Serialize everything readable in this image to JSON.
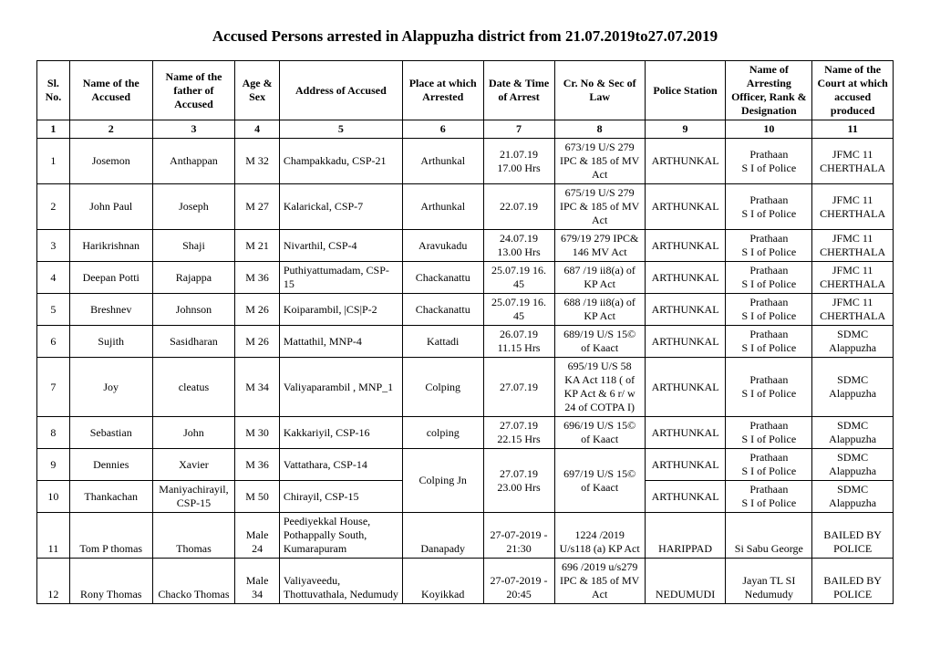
{
  "title": "Accused Persons arrested in   Alappuzha  district from   21.07.2019to27.07.2019",
  "columns": [
    "Sl. No.",
    "Name of the Accused",
    "Name of the father of Accused",
    "Age & Sex",
    "Address of Accused",
    "Place at which Arrested",
    "Date & Time of Arrest",
    "Cr. No & Sec of Law",
    "Police Station",
    "Name of Arresting Officer, Rank & Designation",
    "Name of the Court at which accused produced"
  ],
  "col_numbers": [
    "1",
    "2",
    "3",
    "4",
    "5",
    "6",
    "7",
    "8",
    "9",
    "10",
    "11"
  ],
  "rows": [
    {
      "sl": "1",
      "name": "Josemon",
      "father": "Anthappan",
      "age": "M 32",
      "addr": "Champakkadu, CSP-21",
      "place": "Arthunkal",
      "date": "21.07.19 17.00 Hrs",
      "crno": "673/19 U/S 279 IPC  & 185 of MV Act",
      "station": "ARTHUNKAL",
      "officer": "Prathaan\nS I of Police",
      "court": "JFMC 11 CHERTHALA"
    },
    {
      "sl": "2",
      "name": "John Paul",
      "father": "Joseph",
      "age": "M 27",
      "addr": "Kalarickal, CSP-7",
      "place": "Arthunkal",
      "date": "22.07.19",
      "crno": "675/19 U/S 279 IPC  & 185 of MV Act",
      "station": "ARTHUNKAL",
      "officer": "Prathaan\nS I of Police",
      "court": "JFMC 11 CHERTHALA"
    },
    {
      "sl": "3",
      "name": "Harikrishnan",
      "father": "Shaji",
      "age": "M 21",
      "addr": "Nivarthil, CSP-4",
      "place": "Aravukadu",
      "date": "24.07.19 13.00 Hrs",
      "crno": "679/19  279 IPC& 146  MV Act",
      "station": "ARTHUNKAL",
      "officer": "Prathaan\nS I of Police",
      "court": "JFMC 11 CHERTHALA"
    },
    {
      "sl": "4",
      "name": "Deepan Potti",
      "father": "Rajappa",
      "age": "M 36",
      "addr": "Puthiyattumadam, CSP-15",
      "place": "Chackanattu",
      "date": "25.07.19 16. 45",
      "crno": "687 /19  ii8(a) of KP Act",
      "station": "ARTHUNKAL",
      "officer": "Prathaan\nS I of Police",
      "court": "JFMC 11 CHERTHALA"
    },
    {
      "sl": "5",
      "name": "Breshnev",
      "father": "Johnson",
      "age": "M 26",
      "addr": "Koiparambil, |CS|P-2",
      "place": "Chackanattu",
      "date": "25.07.19 16. 45",
      "crno": "688 /19  ii8(a) of KP Act",
      "station": "ARTHUNKAL",
      "officer": "Prathaan\nS I of Police",
      "court": "JFMC 11 CHERTHALA"
    },
    {
      "sl": "6",
      "name": "Sujith",
      "father": "Sasidharan",
      "age": "M 26",
      "addr": "Mattathil, MNP-4",
      "place": "Kattadi",
      "date": "26.07.19 11.15 Hrs",
      "crno": "689/19 U/S 15© of Kaact",
      "station": "ARTHUNKAL",
      "officer": "Prathaan\nS I of Police",
      "court": "SDMC Alappuzha"
    },
    {
      "sl": "7",
      "name": "Joy",
      "father": "cleatus",
      "age": "M 34",
      "addr": "Valiyaparambil , MNP_1",
      "place": "Colping",
      "date": "27.07.19",
      "crno": "695/19 U/S 58 KA Act  118 ( of KP Act & 6 r/ w 24 of COTPA I)",
      "station": "ARTHUNKAL",
      "officer": "Prathaan\nS I of Police",
      "court": "SDMC Alappuzha"
    },
    {
      "sl": "8",
      "name": "Sebastian",
      "father": "John",
      "age": "M 30",
      "addr": "Kakkariyil, CSP-16",
      "place": "colping",
      "date": "27.07.19 22.15 Hrs",
      "crno": "696/19 U/S 15© of Kaact",
      "station": "ARTHUNKAL",
      "officer": "Prathaan\nS I of Police",
      "court": "SDMC Alappuzha"
    },
    {
      "sl": "9",
      "name": "Dennies",
      "father": "Xavier",
      "age": "M 36",
      "addr": "Vattathara, CSP-14",
      "place": "Colping Jn",
      "date": "27.07.19 23.00 Hrs",
      "crno": "697/19 U/S 15© of Kaact",
      "station": "ARTHUNKAL",
      "officer": "Prathaan\nS I of Police",
      "court": "SDMC Alappuzha",
      "rowspan_place": 2,
      "rowspan_date": 2,
      "rowspan_crno": 2
    },
    {
      "sl": "10",
      "name": "Thankachan",
      "father": "Maniyachirayil, CSP-15",
      "age": "M 50",
      "addr": "Chirayil, CSP-15",
      "place": "",
      "date": "",
      "crno": "",
      "station": "ARTHUNKAL",
      "officer": "Prathaan\nS I of Police",
      "court": "SDMC Alappuzha",
      "skip_place": true,
      "skip_date": true,
      "skip_crno": true
    },
    {
      "sl": "11",
      "name": "Tom P thomas",
      "father": "Thomas",
      "age": "Male 24",
      "addr": "Peediyekkal House, Pothappally South, Kumarapuram",
      "place": "Danapady",
      "date": "27-07-2019 -   21:30",
      "crno": "1224 /2019 U/s118 (a) KP Act",
      "station": "HARIPPAD",
      "officer": "Si Sabu George",
      "court": "BAILED BY POLICE",
      "valign": "bottom"
    },
    {
      "sl": "12",
      "name": "Rony Thomas",
      "father": "Chacko Thomas",
      "age": "Male 34",
      "addr": "Valiyaveedu, Thottuvathala, Nedumudy",
      "place": "Koyikkad",
      "date": "27-07-2019 -   20:45",
      "crno": "696 /2019 u/s279 IPC & 185 of MV Act",
      "station": "NEDUMUDI",
      "officer": "Jayan TL SI Nedumudy",
      "court": "BAILED BY POLICE",
      "valign": "bottom"
    }
  ]
}
